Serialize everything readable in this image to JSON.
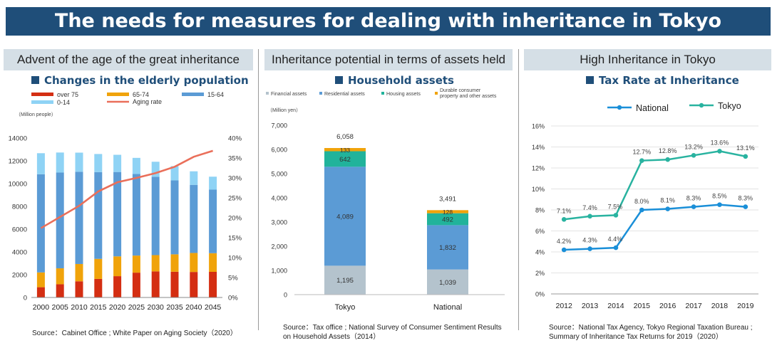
{
  "banner_title": "The needs for measures for dealing with inheritance in Tokyo",
  "panels": [
    {
      "header": "Advent of the age of the great inheritance",
      "subtitle": "Changes in the elderly population",
      "source": "Source：Cabinet Office ; White Paper on Aging Society（2020）"
    },
    {
      "header": "Inheritance potential in terms of assets held",
      "subtitle": "Household assets",
      "source_lines": [
        "Source：Tax office ; National Survey of Consumer Sentiment Results",
        "on Household Assets（2014）"
      ]
    },
    {
      "header": "High Inheritance in Tokyo",
      "subtitle": "Tax Rate at Inheritance",
      "source_lines": [
        "Source：National Tax Agency, Tokyo Regional Taxation Bureau ;",
        "Summary of Inheritance Tax Returns for 2019（2020）"
      ]
    }
  ],
  "chart_data": [
    {
      "type": "bar",
      "stacked": true,
      "title": "Changes in the elderly population",
      "ylabel": "（Million people）",
      "categories": [
        "2000",
        "2005",
        "2010",
        "2015",
        "2020",
        "2025",
        "2030",
        "2035",
        "2040",
        "2045"
      ],
      "ylim": [
        0,
        14000
      ],
      "yticks": [
        "0",
        "2000",
        "4000",
        "6000",
        "8000",
        "10000",
        "12000",
        "14000"
      ],
      "y2lim": [
        0,
        40
      ],
      "y2ticks": [
        "0%",
        "5%",
        "10%",
        "15%",
        "20%",
        "25%",
        "30%",
        "35%",
        "40%"
      ],
      "series": [
        {
          "name": "over 75",
          "color": "#d42e12",
          "values": [
            900,
            1160,
            1420,
            1630,
            1870,
            2180,
            2290,
            2260,
            2240,
            2250
          ]
        },
        {
          "name": "65-74",
          "color": "#f0a30a",
          "values": [
            1300,
            1400,
            1520,
            1760,
            1740,
            1500,
            1430,
            1530,
            1670,
            1640
          ]
        },
        {
          "name": "15-64",
          "color": "#5b9bd5",
          "values": [
            8620,
            8410,
            8100,
            7620,
            7410,
            7170,
            6880,
            6490,
            5980,
            5580
          ]
        },
        {
          "name": "0-14",
          "color": "#8fd3f5",
          "values": [
            1850,
            1760,
            1680,
            1590,
            1510,
            1410,
            1320,
            1250,
            1190,
            1140
          ]
        }
      ],
      "line": {
        "name": "Aging rate",
        "color": "#ea6f5a",
        "values": [
          17.4,
          20.2,
          23.0,
          26.6,
          28.9,
          30.0,
          31.2,
          32.8,
          35.3,
          36.8
        ]
      }
    },
    {
      "type": "bar",
      "stacked": true,
      "title": "Household assets",
      "ylabel": "（Million yen）",
      "categories": [
        "Tokyo",
        "National"
      ],
      "ylim": [
        0,
        7000
      ],
      "yticks": [
        "0",
        "1,000",
        "2,000",
        "3,000",
        "4,000",
        "5,000",
        "6,000",
        "7,000"
      ],
      "totals": [
        "6,058",
        "3,491"
      ],
      "series": [
        {
          "name": "Financial assets",
          "color": "#b4c3cd",
          "values": [
            1195,
            1039
          ],
          "labels": [
            "1,195",
            "1,039"
          ]
        },
        {
          "name": "Residential assets",
          "color": "#5b9bd5",
          "values": [
            4089,
            1832
          ],
          "labels": [
            "4,089",
            "1,832"
          ]
        },
        {
          "name": "Housing assets",
          "color": "#21b39b",
          "values": [
            642,
            492
          ],
          "labels": [
            "642",
            "492"
          ]
        },
        {
          "name": "Durable consumer property and other assets",
          "legend_lines": [
            "Durable consumer",
            "property and other assets"
          ],
          "color": "#f0a30a",
          "values": [
            133,
            128
          ],
          "labels": [
            "133",
            "128"
          ]
        }
      ]
    },
    {
      "type": "line",
      "title": "Tax Rate at Inheritance",
      "categories": [
        "2012",
        "2013",
        "2014",
        "2015",
        "2016",
        "2017",
        "2018",
        "2019"
      ],
      "ylim": [
        0,
        16
      ],
      "yticks": [
        "0%",
        "2%",
        "4%",
        "6%",
        "8%",
        "10%",
        "12%",
        "14%",
        "16%"
      ],
      "series": [
        {
          "name": "National",
          "color": "#1a8fd8",
          "values": [
            4.2,
            4.3,
            4.4,
            8.0,
            8.1,
            8.3,
            8.5,
            8.3
          ],
          "labels": [
            "4.2%",
            "4.3%",
            "4.4%",
            "8.0%",
            "8.1%",
            "8.3%",
            "8.5%",
            "8.3%"
          ]
        },
        {
          "name": "Tokyo",
          "color": "#29b3a0",
          "values": [
            7.1,
            7.4,
            7.5,
            12.7,
            12.8,
            13.2,
            13.6,
            13.1
          ],
          "labels": [
            "7.1%",
            "7.4%",
            "7.5%",
            "12.7%",
            "12.8%",
            "13.2%",
            "13.6%",
            "13.1%"
          ]
        }
      ]
    }
  ]
}
